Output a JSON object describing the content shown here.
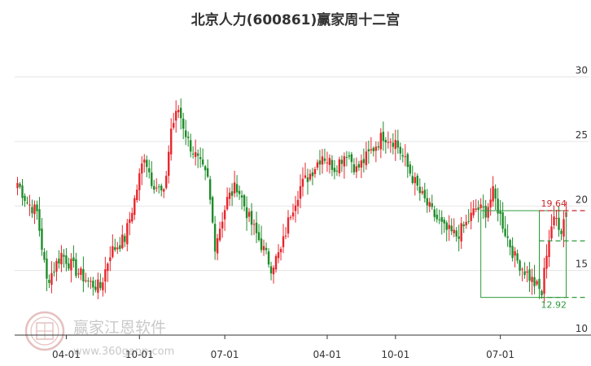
{
  "title": "北京人力(600861)赢家周十二宫",
  "watermark": {
    "name": "赢家江恩软件",
    "url": "www.360gann.com"
  },
  "colors": {
    "up": "#e8262c",
    "down": "#1e8c2a",
    "grid": "#e5e5e5",
    "axis": "#333333",
    "box": "#2e9a3c",
    "ref_red": "#c8282d",
    "ref_green": "#2e9a3c"
  },
  "chart_data": {
    "type": "candlestick",
    "title": "北京人力(600861)赢家周十二宫",
    "xlabel": "",
    "ylabel": "",
    "ylim": [
      10,
      33
    ],
    "y_ticks": [
      10,
      15,
      20,
      25,
      30
    ],
    "x_ticks": [
      "04-01",
      "10-01",
      "07-01",
      "04-01",
      "10-01",
      "07-01",
      "04-01"
    ],
    "x_tick_index": [
      20,
      50,
      85,
      127,
      155,
      198,
      252
    ],
    "grid": true,
    "anchors": [
      {
        "i": 0,
        "v": 21.8
      },
      {
        "i": 4,
        "v": 20.3
      },
      {
        "i": 8,
        "v": 19.5
      },
      {
        "i": 12,
        "v": 14.2
      },
      {
        "i": 14,
        "v": 14.8
      },
      {
        "i": 18,
        "v": 16.3
      },
      {
        "i": 24,
        "v": 15.0
      },
      {
        "i": 30,
        "v": 14.0
      },
      {
        "i": 34,
        "v": 13.7
      },
      {
        "i": 38,
        "v": 16.4
      },
      {
        "i": 44,
        "v": 17.5
      },
      {
        "i": 48,
        "v": 20.5
      },
      {
        "i": 52,
        "v": 24.0
      },
      {
        "i": 55,
        "v": 22.0
      },
      {
        "i": 60,
        "v": 20.8
      },
      {
        "i": 63,
        "v": 26.0
      },
      {
        "i": 66,
        "v": 27.5
      },
      {
        "i": 70,
        "v": 25.0
      },
      {
        "i": 74,
        "v": 23.5
      },
      {
        "i": 78,
        "v": 22.0
      },
      {
        "i": 81,
        "v": 17.0
      },
      {
        "i": 86,
        "v": 20.5
      },
      {
        "i": 90,
        "v": 21.6
      },
      {
        "i": 95,
        "v": 19.0
      },
      {
        "i": 100,
        "v": 17.0
      },
      {
        "i": 104,
        "v": 15.3
      },
      {
        "i": 108,
        "v": 16.5
      },
      {
        "i": 112,
        "v": 19.5
      },
      {
        "i": 116,
        "v": 21.5
      },
      {
        "i": 120,
        "v": 22.5
      },
      {
        "i": 125,
        "v": 24.0
      },
      {
        "i": 130,
        "v": 23.0
      },
      {
        "i": 135,
        "v": 24.2
      },
      {
        "i": 139,
        "v": 22.8
      },
      {
        "i": 142,
        "v": 23.5
      },
      {
        "i": 146,
        "v": 24.5
      },
      {
        "i": 150,
        "v": 25.5
      },
      {
        "i": 155,
        "v": 25.0
      },
      {
        "i": 160,
        "v": 23.0
      },
      {
        "i": 165,
        "v": 21.0
      },
      {
        "i": 170,
        "v": 19.5
      },
      {
        "i": 175,
        "v": 18.2
      },
      {
        "i": 180,
        "v": 17.7
      },
      {
        "i": 184,
        "v": 18.6
      },
      {
        "i": 188,
        "v": 19.8
      },
      {
        "i": 192,
        "v": 19.6
      },
      {
        "i": 195,
        "v": 21.0
      },
      {
        "i": 200,
        "v": 18.0
      },
      {
        "i": 204,
        "v": 16.0
      },
      {
        "i": 208,
        "v": 15.0
      },
      {
        "i": 212,
        "v": 14.0
      },
      {
        "i": 215,
        "v": 13.2
      },
      {
        "i": 217,
        "v": 16.5
      },
      {
        "i": 219,
        "v": 18.5
      },
      {
        "i": 221,
        "v": 19.0
      },
      {
        "i": 223,
        "v": 18.2
      },
      {
        "i": 225,
        "v": 19.8
      }
    ],
    "count": 226,
    "last_n": 19,
    "projection": {
      "box1": {
        "i0": 190,
        "i1": 214,
        "top": 19.64,
        "bottom": 12.92
      },
      "box2": {
        "i0": 214,
        "i1": 225,
        "top": 19.64,
        "bottom": 12.92
      },
      "ref_lines": [
        {
          "value": 19.64,
          "color": "red"
        },
        {
          "value": 17.3,
          "color": "green"
        },
        {
          "value": 12.92,
          "color": "green"
        }
      ],
      "labels": [
        {
          "text": "19.64",
          "value": 19.64,
          "color": "red"
        },
        {
          "text": "12.92",
          "value": 12.92,
          "color": "green"
        }
      ]
    }
  }
}
